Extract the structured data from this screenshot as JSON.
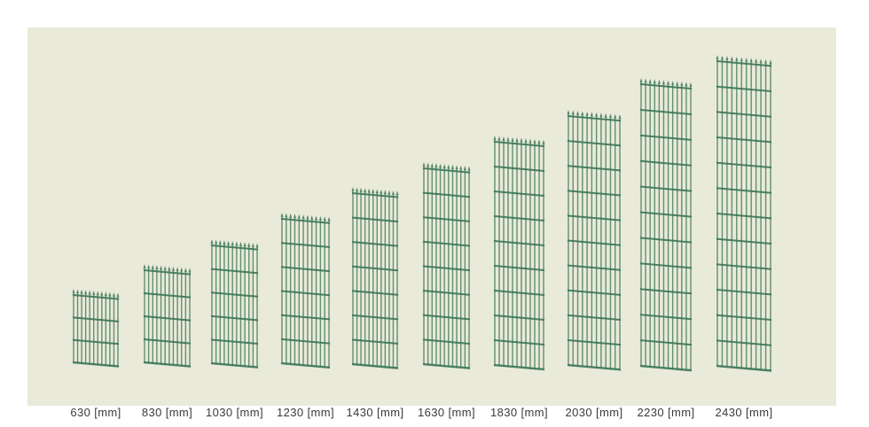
{
  "page": {
    "background": "#ffffff"
  },
  "board": {
    "background": "#e9ead9"
  },
  "colors": {
    "wire": "#629070",
    "rail": "#4a8164",
    "knot": "#457b5e",
    "spike_tip": "#578869",
    "label_text": "#3a3a3a"
  },
  "diagram": {
    "unit": "mm",
    "panels": [
      {
        "height_mm": 630,
        "label": "630 [mm]"
      },
      {
        "height_mm": 830,
        "label": "830 [mm]"
      },
      {
        "height_mm": 1030,
        "label": "1030 [mm]"
      },
      {
        "height_mm": 1230,
        "label": "1230 [mm]"
      },
      {
        "height_mm": 1430,
        "label": "1430 [mm]"
      },
      {
        "height_mm": 1630,
        "label": "1630 [mm]"
      },
      {
        "height_mm": 1830,
        "label": "1830 [mm]"
      },
      {
        "height_mm": 2030,
        "label": "2030 [mm]"
      },
      {
        "height_mm": 2230,
        "label": "2230 [mm]"
      },
      {
        "height_mm": 2430,
        "label": "2430 [mm]"
      }
    ]
  }
}
